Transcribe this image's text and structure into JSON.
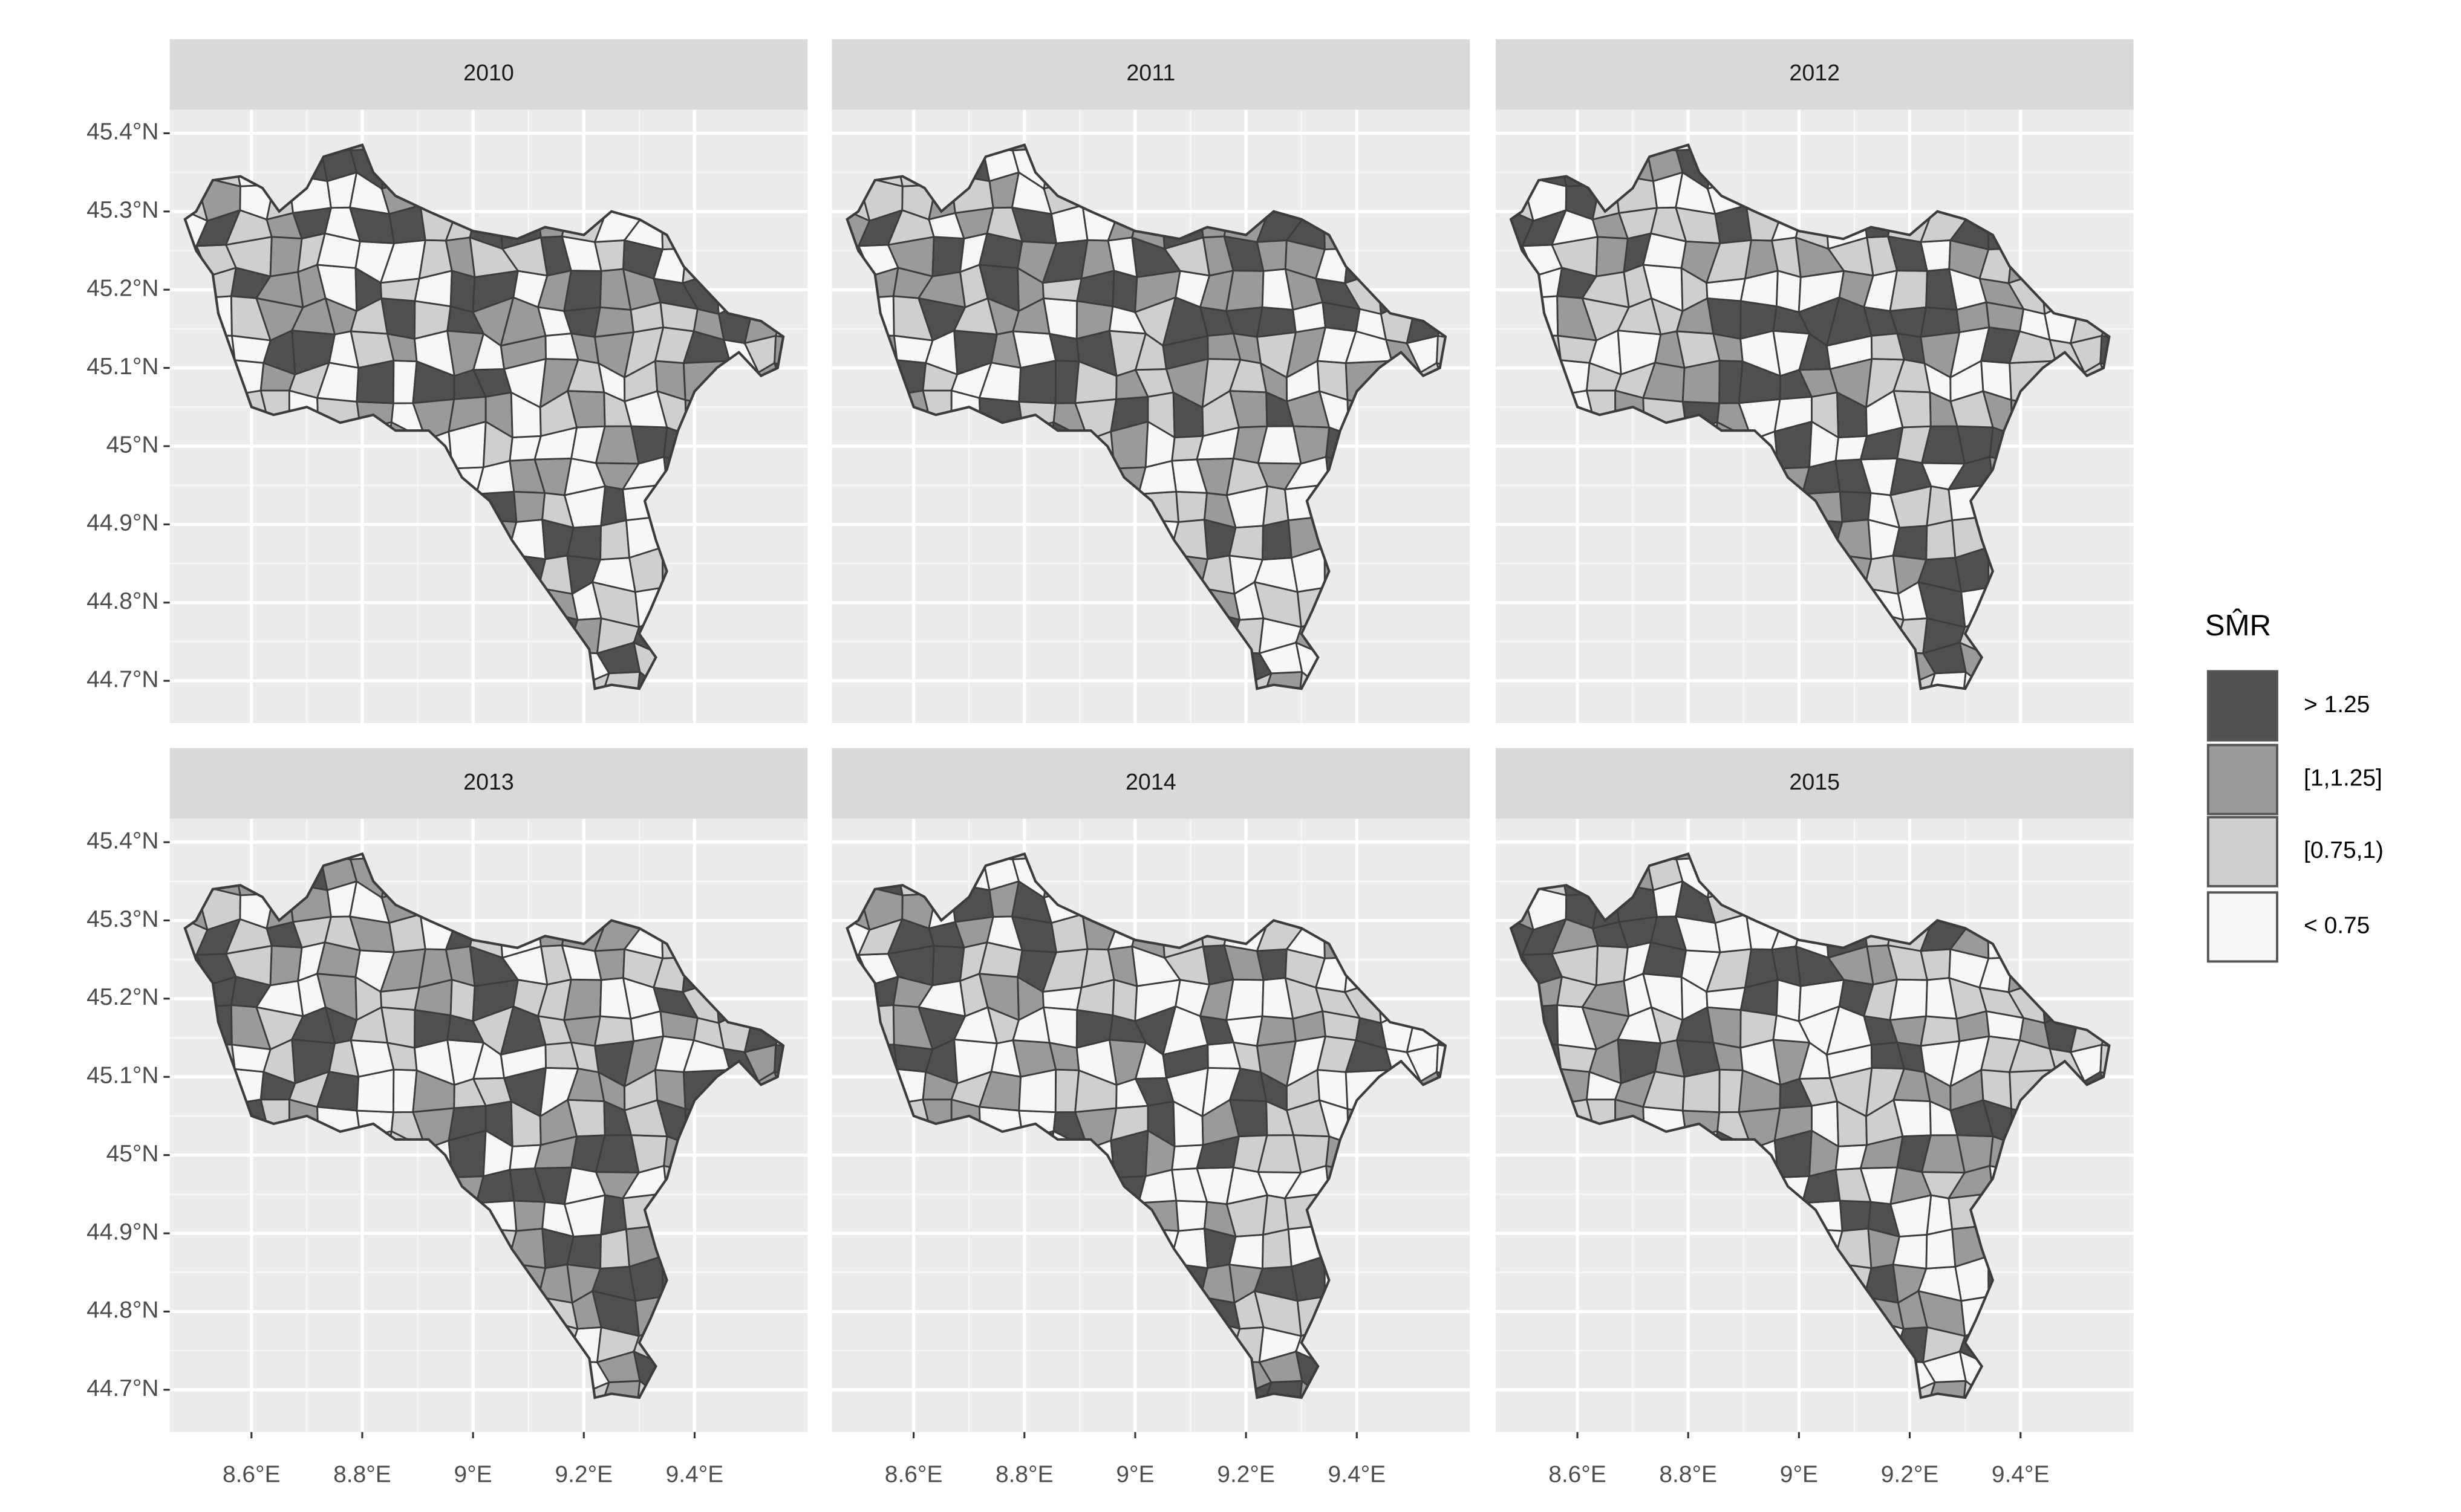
{
  "chart_data": {
    "type": "choropleth",
    "facets": [
      "2010",
      "2011",
      "2012",
      "2013",
      "2014",
      "2015"
    ],
    "xlim": [
      8.4525,
      9.604
    ],
    "ylim": [
      44.646,
      45.43
    ],
    "xticks": [
      {
        "value": 8.6,
        "label": "8.6°E"
      },
      {
        "value": 8.8,
        "label": "8.8°E"
      },
      {
        "value": 9,
        "label": "9°E"
      },
      {
        "value": 9.2,
        "label": "9.2°E"
      },
      {
        "value": 9.4,
        "label": "9.4°E"
      }
    ],
    "yticks": [
      {
        "value": 44.7,
        "label": "44.7°N"
      },
      {
        "value": 44.8,
        "label": "44.8°N"
      },
      {
        "value": 44.9,
        "label": "44.9°N"
      },
      {
        "value": 45,
        "label": "45°N"
      },
      {
        "value": 45.1,
        "label": "45.1°N"
      },
      {
        "value": 45.2,
        "label": "45.2°N"
      },
      {
        "value": 45.3,
        "label": "45.3°N"
      },
      {
        "value": 45.4,
        "label": "45.4°N"
      }
    ],
    "grid": true,
    "legend": {
      "title": "SM̂R",
      "entries": [
        {
          "label": "> 1.25",
          "color": "#505050"
        },
        {
          "label": "[1,1.25]",
          "color": "#9a9a9a"
        },
        {
          "label": "[0.75,1)",
          "color": "#cfcfcf"
        },
        {
          "label": "< 0.75",
          "color": "#f7f7f7"
        }
      ]
    }
  }
}
